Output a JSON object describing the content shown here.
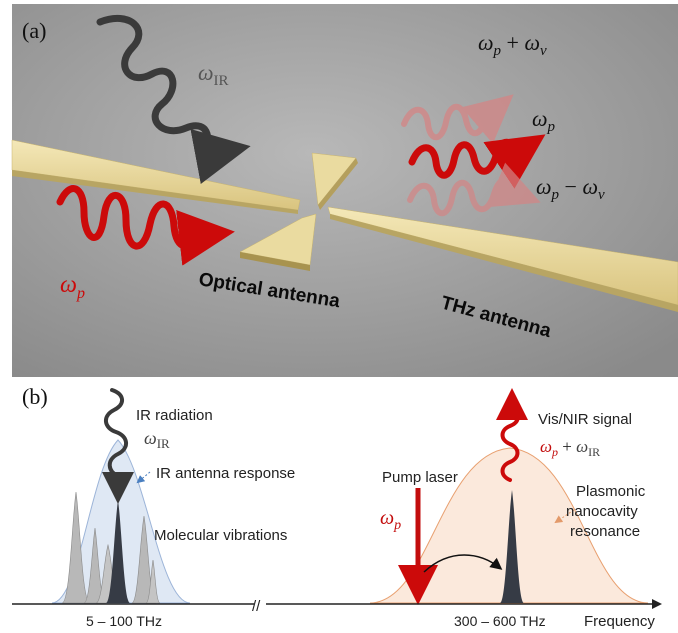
{
  "panel_a": {
    "label": "(a)",
    "omega_ir": {
      "sym": "ω",
      "sub": "IR"
    },
    "omega_p_left": {
      "sym": "ω",
      "sub": "p"
    },
    "sum_freq": {
      "a": "ω",
      "asub": "p",
      "op": " + ",
      "b": "ω",
      "bsub": "ν"
    },
    "pump_freq": {
      "sym": "ω",
      "sub": "p"
    },
    "diff_freq": {
      "a": "ω",
      "asub": "p",
      "op": " − ",
      "b": "ω",
      "bsub": "ν"
    },
    "optical_antenna": "Optical antenna",
    "thz_antenna": "THz antenna",
    "colors": {
      "background": "#9c9c9c",
      "gold": "#e8d79c",
      "pump_red": "#cc0a0a",
      "ir_dark": "#3a3a3a"
    }
  },
  "panel_b": {
    "label": "(b)",
    "ir_radiation": "IR radiation",
    "ir_symbol": {
      "sym": "ω",
      "sub": "IR"
    },
    "ir_antenna_response": "IR antenna response",
    "molecular_vibrations": "Molecular vibrations",
    "ir_range": "5 – 100 THz",
    "pump_laser": "Pump laser",
    "pump_symbol": {
      "sym": "ω",
      "sub": "p"
    },
    "vis_nir_signal": "Vis/NIR signal",
    "signal_symbol": {
      "a": "ω",
      "asub": "p",
      "op": " + ",
      "b": "ω",
      "bsub": "IR"
    },
    "plasmonic_label": [
      "Plasmonic",
      "nanocavity",
      "resonance"
    ],
    "vis_range": "300 – 600 THz",
    "axis_label": "Frequency",
    "axis_break": "//",
    "colors": {
      "ir_peak_fill": "#dfe8f4",
      "vis_peak_fill": "#fbe9dc",
      "vis_peak_stroke": "#e8a070",
      "dark_peak": "#363b45",
      "pump_red": "#c30d0d"
    }
  }
}
